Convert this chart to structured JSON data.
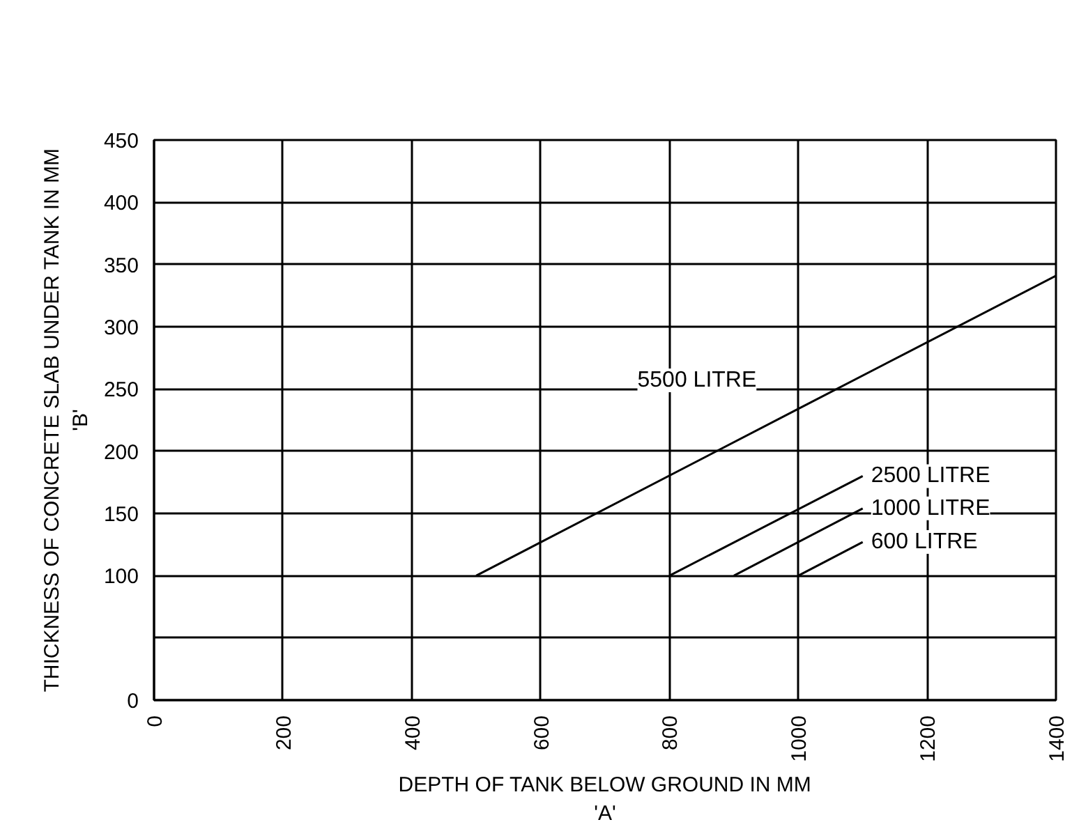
{
  "chart_data": {
    "type": "line",
    "xlabel": "DEPTH OF TANK BELOW GROUND IN MM\n'A'",
    "ylabel": "THICKNESS OF CONCRETE SLAB UNDER TANK IN MM\n'B'",
    "xlim": [
      0,
      1400
    ],
    "xticks": [
      0,
      200,
      400,
      600,
      800,
      1000,
      1200,
      1400
    ],
    "ylim": [
      0,
      450
    ],
    "yticks": [
      0,
      {
        "value": 50,
        "label": null
      },
      100,
      150,
      200,
      250,
      300,
      350,
      400,
      450
    ],
    "grid": true,
    "marker": "none",
    "line_style": "solid",
    "series": [
      {
        "name": "5500 LITRE",
        "color": "#000000",
        "x": [
          500,
          1000,
          1400
        ],
        "values": [
          100,
          234,
          341
        ]
      },
      {
        "name": "2500 LITRE",
        "color": "#000000",
        "x": [
          800,
          1100
        ],
        "values": [
          100,
          180
        ]
      },
      {
        "name": "1000 LITRE",
        "color": "#000000",
        "x": [
          900,
          1100
        ],
        "values": [
          100,
          154
        ]
      },
      {
        "name": "600 LITRE",
        "color": "#000000",
        "x": [
          1000,
          1100
        ],
        "values": [
          100,
          127
        ]
      }
    ]
  }
}
